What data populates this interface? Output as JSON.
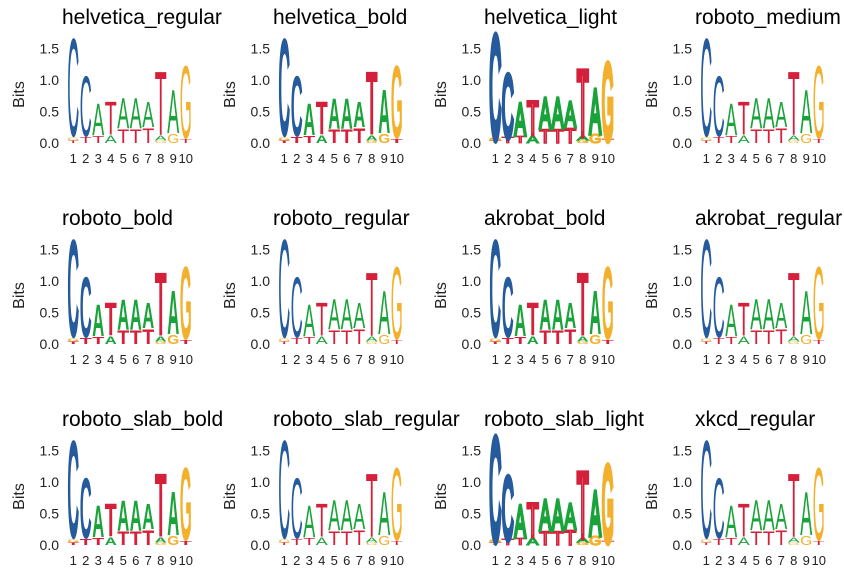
{
  "chart_data": {
    "type": "sequence-logo",
    "ylabel": "Bits",
    "ylim": [
      0,
      1.6
    ],
    "yticks": [
      "0.0",
      "0.5",
      "1.0",
      "1.5"
    ],
    "positions": [
      "1",
      "2",
      "3",
      "4",
      "5",
      "6",
      "7",
      "8",
      "9",
      "10"
    ],
    "colors": {
      "A": "#1aa33a",
      "C": "#255a9c",
      "G": "#f2b02c",
      "T": "#d4203a"
    },
    "motif": [
      [
        {
          "b": "T",
          "v": 0.04
        },
        {
          "b": "G",
          "v": 0.05
        },
        {
          "b": "C",
          "v": 1.62
        }
      ],
      [
        {
          "b": "T",
          "v": 0.1
        },
        {
          "b": "C",
          "v": 1.0
        }
      ],
      [
        {
          "b": "T",
          "v": 0.12
        },
        {
          "b": "A",
          "v": 0.52
        }
      ],
      [
        {
          "b": "A",
          "v": 0.13
        },
        {
          "b": "T",
          "v": 0.55
        }
      ],
      [
        {
          "b": "T",
          "v": 0.22
        },
        {
          "b": "A",
          "v": 0.5
        }
      ],
      [
        {
          "b": "T",
          "v": 0.22
        },
        {
          "b": "A",
          "v": 0.5
        }
      ],
      [
        {
          "b": "T",
          "v": 0.25
        },
        {
          "b": "A",
          "v": 0.42
        }
      ],
      [
        {
          "b": "G",
          "v": 0.04
        },
        {
          "b": "A",
          "v": 0.08
        },
        {
          "b": "T",
          "v": 1.05
        }
      ],
      [
        {
          "b": "G",
          "v": 0.15
        },
        {
          "b": "A",
          "v": 0.72
        }
      ],
      [
        {
          "b": "T",
          "v": 0.06
        },
        {
          "b": "G",
          "v": 1.2
        }
      ]
    ],
    "panels": [
      {
        "title": "helvetica_regular",
        "weight": 400
      },
      {
        "title": "helvetica_bold",
        "weight": 700
      },
      {
        "title": "helvetica_light",
        "weight": 300
      },
      {
        "title": "roboto_medium",
        "weight": 500
      },
      {
        "title": "roboto_bold",
        "weight": 700
      },
      {
        "title": "roboto_regular",
        "weight": 400
      },
      {
        "title": "akrobat_bold",
        "weight": 700
      },
      {
        "title": "akrobat_regular",
        "weight": 400
      },
      {
        "title": "roboto_slab_bold",
        "weight": 700
      },
      {
        "title": "roboto_slab_regular",
        "weight": 400
      },
      {
        "title": "roboto_slab_light",
        "weight": 300
      },
      {
        "title": "xkcd_regular",
        "weight": 400
      }
    ]
  }
}
